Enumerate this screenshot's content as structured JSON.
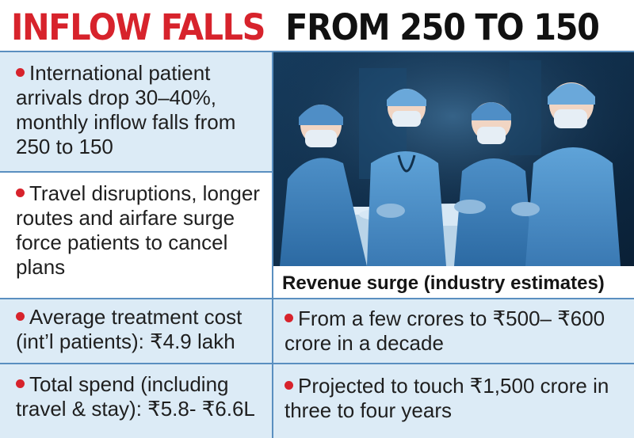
{
  "headline": {
    "part1": "INFLOW FALLS",
    "part2": "FROM 250 TO 150"
  },
  "left_points": [
    "International patient arrivals drop 30–40%, monthly inflow falls from 250 to 150",
    "Travel disruptions, longer routes and airfare surge force patients to cancel plans",
    "Average treatment cost (int’l patients): ₹4.9 lakh",
    "Total spend (including travel & stay): ₹5.8- ₹6.6L"
  ],
  "revenue": {
    "title": "Revenue surge (industry estimates)",
    "points": [
      "From a few crores to ₹500– ₹600 crore in a decade",
      "Projected to touch ₹1,500 crore in three to four years"
    ]
  },
  "colors": {
    "accent_red": "#d7232c",
    "panel_blue": "#dcebf6",
    "divider_blue": "#5a8fc0"
  },
  "image": {
    "subject": "surgeons-operating-photo"
  }
}
